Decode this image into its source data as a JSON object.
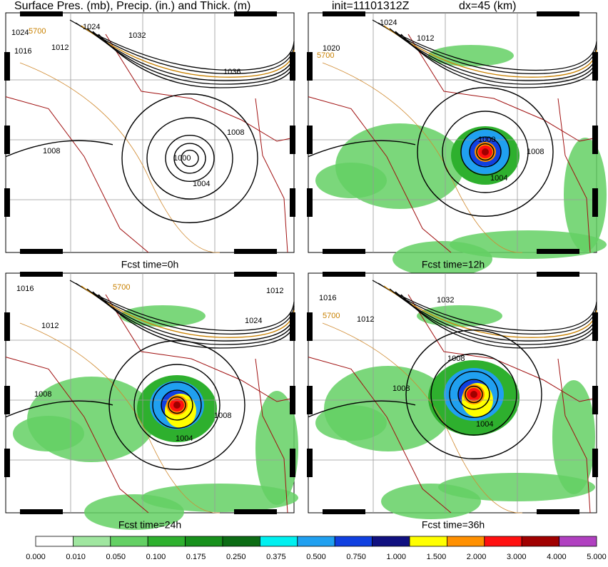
{
  "header": {
    "title": "Surface Pres. (mb), Precip. (in.) and Thick. (m)",
    "init": "init=11101312Z",
    "dx": "dx=45 (km)"
  },
  "panels": [
    {
      "caption": "Fcst time=0h",
      "labels": [
        "1024",
        "1016",
        "1012",
        "1024",
        "1032",
        "1036",
        "1008",
        "1000",
        "1004",
        "1008",
        "5700"
      ]
    },
    {
      "caption": "Fcst time=12h",
      "labels": [
        "1024",
        "1012",
        "1020",
        "5700",
        "1000",
        "1004",
        "1008"
      ]
    },
    {
      "caption": "Fcst time=24h",
      "labels": [
        "1016",
        "1012",
        "1012",
        "1024",
        "5700",
        "1008",
        "1004",
        "1008"
      ]
    },
    {
      "caption": "Fcst time=36h",
      "labels": [
        "1016",
        "1012",
        "1032",
        "5700",
        "1008",
        "1008",
        "1004"
      ]
    }
  ],
  "colorbar": {
    "labels": [
      "0.000",
      "0.010",
      "0.050",
      "0.100",
      "0.175",
      "0.250",
      "0.375",
      "0.500",
      "0.750",
      "1.000",
      "1.500",
      "2.000",
      "3.000",
      "4.000",
      "5.000"
    ],
    "colors": [
      "#ffffff",
      "#a0e6a0",
      "#64d064",
      "#2eb02e",
      "#17901c",
      "#0c6c14",
      "#00f0f0",
      "#20a0f0",
      "#1040e0",
      "#101080",
      "#ffff00",
      "#ff9000",
      "#ff1010",
      "#a00000",
      "#b040c0"
    ]
  }
}
